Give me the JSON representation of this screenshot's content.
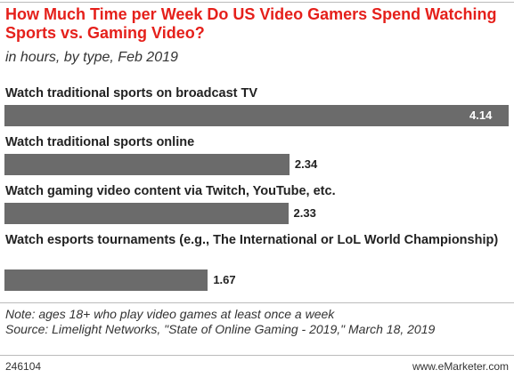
{
  "chart_data": {
    "type": "bar",
    "orientation": "horizontal",
    "title": "How Much Time per Week Do US Video Gamers Spend Watching Sports vs. Gaming Video?",
    "subtitle": "in hours, by type, Feb 2019",
    "categories": [
      "Watch traditional sports on broadcast TV",
      "Watch traditional sports online",
      "Watch gaming video content via Twitch, YouTube, etc.",
      "Watch esports tournaments (e.g., The International or LoL World Championship)"
    ],
    "values": [
      4.14,
      2.34,
      2.33,
      1.67
    ],
    "color": "#6b6b6b",
    "note": "Note: ages 18+ who play video games at least once a week",
    "source": "Source: Limelight Networks, \"State of Online Gaming - 2019,\" March 18, 2019",
    "chart_id": "246104",
    "brand": "www.eMarketer.com"
  }
}
